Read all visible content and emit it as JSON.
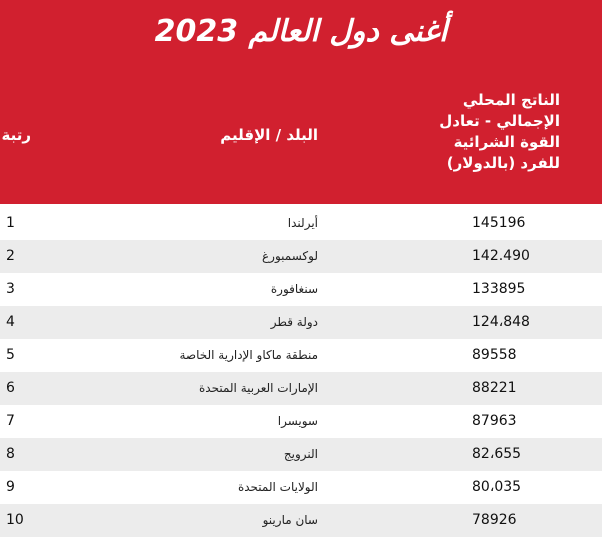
{
  "title": "أغنى دول العالم 2023",
  "headers": {
    "rank": "رتبة",
    "country": "البلد / الإقليم",
    "gdp": "الناتج المحلي الإجمالي - تعادل القوة الشرائية للفرد (بالدولار)"
  },
  "rows": [
    {
      "rank": "1",
      "country": "أيرلندا",
      "gdp": "145196"
    },
    {
      "rank": "2",
      "country": "لوكسمبورغ",
      "gdp": "142.490"
    },
    {
      "rank": "3",
      "country": "سنغافورة",
      "gdp": "133895"
    },
    {
      "rank": "4",
      "country": "دولة قطر",
      "gdp": "124،848"
    },
    {
      "rank": "5",
      "country": "منطقة ماكاو الإدارية الخاصة",
      "gdp": "89558"
    },
    {
      "rank": "6",
      "country": "الإمارات العربية المتحدة",
      "gdp": "88221"
    },
    {
      "rank": "7",
      "country": "سويسرا",
      "gdp": "87963"
    },
    {
      "rank": "8",
      "country": "النرويج",
      "gdp": "82،655"
    },
    {
      "rank": "9",
      "country": "الولايات المتحدة",
      "gdp": "80،035"
    },
    {
      "rank": "10",
      "country": "سان مارينو",
      "gdp": "78926"
    }
  ]
}
